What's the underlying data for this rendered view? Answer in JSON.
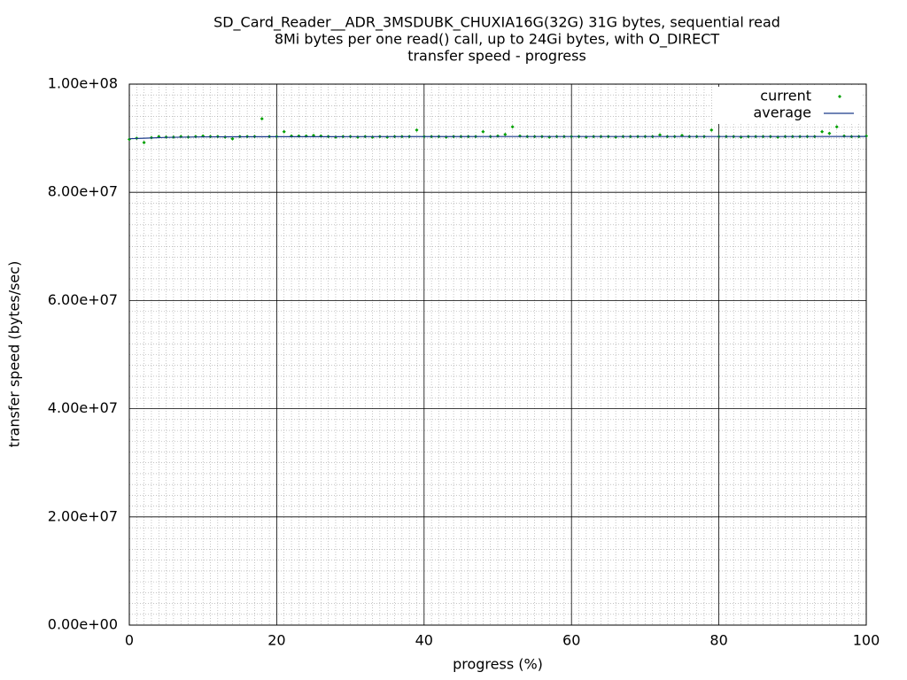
{
  "chart_data": {
    "type": "scatter",
    "title": [
      "SD_Card_Reader__ADR_3MSDUBK_CHUXIA16G(32G) 31G bytes, sequential read",
      "8Mi bytes per one read() call, up to 24Gi bytes, with O_DIRECT",
      "transfer speed - progress"
    ],
    "x_label": "progress (%)",
    "y_label": "transfer speed (bytes/sec)",
    "xlim": [
      0,
      100
    ],
    "ylim": [
      0,
      100000000
    ],
    "xticks": [
      0,
      20,
      40,
      60,
      80,
      100
    ],
    "yticks": [
      {
        "value": 0,
        "label": "0.00e+00"
      },
      {
        "value": 20000000,
        "label": "2.00e+07"
      },
      {
        "value": 40000000,
        "label": "4.00e+07"
      },
      {
        "value": 60000000,
        "label": "6.00e+07"
      },
      {
        "value": 80000000,
        "label": "8.00e+07"
      },
      {
        "value": 100000000,
        "label": "1.00e+08"
      }
    ],
    "grid": true,
    "minor_grid_subdivisions": {
      "x": 20,
      "y": 10
    },
    "legend": "top right",
    "series": [
      {
        "name": "current",
        "style": "points",
        "color": "#00a000",
        "x": [
          0,
          1,
          2,
          3,
          4,
          5,
          6,
          7,
          8,
          9,
          10,
          11,
          12,
          13,
          14,
          15,
          16,
          17,
          18,
          19,
          20,
          21,
          22,
          23,
          24,
          25,
          26,
          27,
          28,
          29,
          30,
          31,
          32,
          33,
          34,
          35,
          36,
          37,
          38,
          39,
          40,
          41,
          42,
          43,
          44,
          45,
          46,
          47,
          48,
          49,
          50,
          51,
          52,
          53,
          54,
          55,
          56,
          57,
          58,
          59,
          60,
          61,
          62,
          63,
          64,
          65,
          66,
          67,
          68,
          69,
          70,
          71,
          72,
          73,
          74,
          75,
          76,
          77,
          78,
          79,
          80,
          81,
          82,
          83,
          84,
          85,
          86,
          87,
          88,
          89,
          90,
          91,
          92,
          93,
          94,
          95,
          96,
          97,
          98,
          99,
          100
        ],
        "values": [
          89800000,
          90000000,
          89200000,
          90100000,
          90300000,
          90200000,
          90200000,
          90300000,
          90200000,
          90300000,
          90400000,
          90300000,
          90300000,
          90200000,
          89900000,
          90300000,
          90300000,
          90300000,
          93600000,
          90300000,
          90300000,
          91200000,
          90400000,
          90400000,
          90400000,
          90500000,
          90400000,
          90300000,
          90200000,
          90300000,
          90300000,
          90200000,
          90300000,
          90200000,
          90300000,
          90200000,
          90300000,
          90300000,
          90300000,
          91500000,
          90300000,
          90300000,
          90300000,
          90200000,
          90300000,
          90300000,
          90300000,
          90300000,
          91200000,
          90300000,
          90400000,
          90700000,
          92100000,
          90400000,
          90300000,
          90300000,
          90300000,
          90200000,
          90300000,
          90300000,
          90300000,
          90300000,
          90200000,
          90300000,
          90300000,
          90300000,
          90200000,
          90300000,
          90300000,
          90300000,
          90300000,
          90300000,
          90600000,
          90300000,
          90300000,
          90500000,
          90300000,
          90300000,
          90300000,
          91500000,
          90300000,
          90300000,
          90300000,
          90200000,
          90300000,
          90300000,
          90300000,
          90300000,
          90200000,
          90300000,
          90300000,
          90300000,
          90300000,
          90300000,
          91200000,
          90900000,
          92100000,
          90400000,
          90300000,
          90300000,
          90400000
        ]
      },
      {
        "name": "average",
        "style": "line",
        "color": "#1a3a8a",
        "x": [
          0,
          2,
          5,
          10,
          20,
          30,
          40,
          50,
          60,
          70,
          80,
          90,
          100
        ],
        "values": [
          89900000,
          90000000,
          90150000,
          90250000,
          90280000,
          90290000,
          90300000,
          90310000,
          90310000,
          90310000,
          90310000,
          90310000,
          90320000
        ]
      }
    ]
  }
}
